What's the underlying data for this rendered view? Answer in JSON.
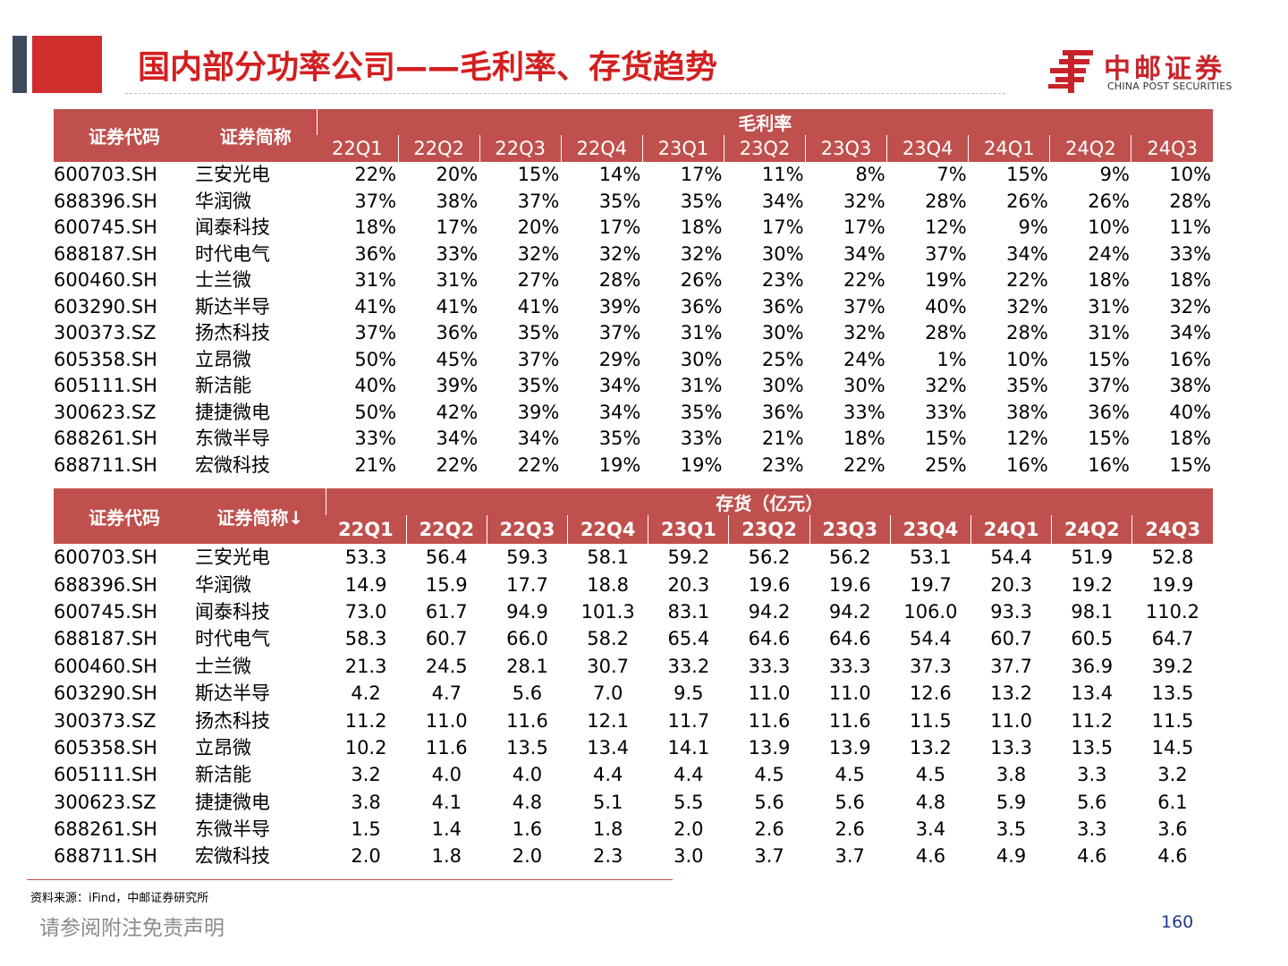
{
  "title": "国内部分功率公司——毛利率、存货趋势",
  "logo": {
    "cn": "中邮证券",
    "en": "CHINA POST SECURITIES"
  },
  "gross_margin_table": {
    "header_code": "证券代码",
    "header_name": "证券简称",
    "header_group": "毛利率",
    "quarters": [
      "22Q1",
      "22Q2",
      "22Q3",
      "22Q4",
      "23Q1",
      "23Q2",
      "23Q3",
      "23Q4",
      "24Q1",
      "24Q2",
      "24Q3"
    ],
    "rows": [
      {
        "code": "600703.SH",
        "name": "三安光电",
        "values": [
          "22%",
          "20%",
          "15%",
          "14%",
          "17%",
          "11%",
          "8%",
          "7%",
          "15%",
          "9%",
          "10%"
        ]
      },
      {
        "code": "688396.SH",
        "name": "华润微",
        "values": [
          "37%",
          "38%",
          "37%",
          "35%",
          "35%",
          "34%",
          "32%",
          "28%",
          "26%",
          "26%",
          "28%"
        ]
      },
      {
        "code": "600745.SH",
        "name": "闻泰科技",
        "values": [
          "18%",
          "17%",
          "20%",
          "17%",
          "18%",
          "17%",
          "17%",
          "12%",
          "9%",
          "10%",
          "11%"
        ]
      },
      {
        "code": "688187.SH",
        "name": "时代电气",
        "values": [
          "36%",
          "33%",
          "32%",
          "32%",
          "32%",
          "30%",
          "34%",
          "37%",
          "34%",
          "24%",
          "33%"
        ]
      },
      {
        "code": "600460.SH",
        "name": "士兰微",
        "values": [
          "31%",
          "31%",
          "27%",
          "28%",
          "26%",
          "23%",
          "22%",
          "19%",
          "22%",
          "18%",
          "18%"
        ]
      },
      {
        "code": "603290.SH",
        "name": "斯达半导",
        "values": [
          "41%",
          "41%",
          "41%",
          "39%",
          "36%",
          "36%",
          "37%",
          "40%",
          "32%",
          "31%",
          "32%"
        ]
      },
      {
        "code": "300373.SZ",
        "name": "扬杰科技",
        "values": [
          "37%",
          "36%",
          "35%",
          "37%",
          "31%",
          "30%",
          "32%",
          "28%",
          "28%",
          "31%",
          "34%"
        ]
      },
      {
        "code": "605358.SH",
        "name": "立昂微",
        "values": [
          "50%",
          "45%",
          "37%",
          "29%",
          "30%",
          "25%",
          "24%",
          "1%",
          "10%",
          "15%",
          "16%"
        ]
      },
      {
        "code": "605111.SH",
        "name": "新洁能",
        "values": [
          "40%",
          "39%",
          "35%",
          "34%",
          "31%",
          "30%",
          "30%",
          "32%",
          "35%",
          "37%",
          "38%"
        ]
      },
      {
        "code": "300623.SZ",
        "name": "捷捷微电",
        "values": [
          "50%",
          "42%",
          "39%",
          "34%",
          "35%",
          "36%",
          "33%",
          "33%",
          "38%",
          "36%",
          "40%"
        ]
      },
      {
        "code": "688261.SH",
        "name": "东微半导",
        "values": [
          "33%",
          "34%",
          "34%",
          "35%",
          "33%",
          "21%",
          "18%",
          "15%",
          "12%",
          "15%",
          "18%"
        ]
      },
      {
        "code": "688711.SH",
        "name": "宏微科技",
        "values": [
          "21%",
          "22%",
          "22%",
          "19%",
          "19%",
          "23%",
          "22%",
          "25%",
          "16%",
          "16%",
          "15%"
        ]
      }
    ]
  },
  "inventory_table": {
    "header_code": "证券代码",
    "header_name": "证券简称↓",
    "header_group": "存货（亿元）",
    "quarters": [
      "22Q1",
      "22Q2",
      "22Q3",
      "22Q4",
      "23Q1",
      "23Q2",
      "23Q3",
      "23Q4",
      "24Q1",
      "24Q2",
      "24Q3"
    ],
    "rows": [
      {
        "code": "600703.SH",
        "name": "三安光电",
        "values": [
          "53.3",
          "56.4",
          "59.3",
          "58.1",
          "59.2",
          "56.2",
          "56.2",
          "53.1",
          "54.4",
          "51.9",
          "52.8"
        ]
      },
      {
        "code": "688396.SH",
        "name": "华润微",
        "values": [
          "14.9",
          "15.9",
          "17.7",
          "18.8",
          "20.3",
          "19.6",
          "19.6",
          "19.7",
          "20.3",
          "19.2",
          "19.9"
        ]
      },
      {
        "code": "600745.SH",
        "name": "闻泰科技",
        "values": [
          "73.0",
          "61.7",
          "94.9",
          "101.3",
          "83.1",
          "94.2",
          "94.2",
          "106.0",
          "93.3",
          "98.1",
          "110.2"
        ]
      },
      {
        "code": "688187.SH",
        "name": "时代电气",
        "values": [
          "58.3",
          "60.7",
          "66.0",
          "58.2",
          "65.4",
          "64.6",
          "64.6",
          "54.4",
          "60.7",
          "60.5",
          "64.7"
        ]
      },
      {
        "code": "600460.SH",
        "name": "士兰微",
        "values": [
          "21.3",
          "24.5",
          "28.1",
          "30.7",
          "33.2",
          "33.3",
          "33.3",
          "37.3",
          "37.7",
          "36.9",
          "39.2"
        ]
      },
      {
        "code": "603290.SH",
        "name": "斯达半导",
        "values": [
          "4.2",
          "4.7",
          "5.6",
          "7.0",
          "9.5",
          "11.0",
          "11.0",
          "12.6",
          "13.2",
          "13.4",
          "13.5"
        ]
      },
      {
        "code": "300373.SZ",
        "name": "扬杰科技",
        "values": [
          "11.2",
          "11.0",
          "11.6",
          "12.1",
          "11.7",
          "11.6",
          "11.6",
          "11.5",
          "11.0",
          "11.2",
          "11.5"
        ]
      },
      {
        "code": "605358.SH",
        "name": "立昂微",
        "values": [
          "10.2",
          "11.6",
          "13.5",
          "13.4",
          "14.1",
          "13.9",
          "13.9",
          "13.2",
          "13.3",
          "13.5",
          "14.5"
        ]
      },
      {
        "code": "605111.SH",
        "name": "新洁能",
        "values": [
          "3.2",
          "4.0",
          "4.0",
          "4.4",
          "4.4",
          "4.5",
          "4.5",
          "4.5",
          "3.8",
          "3.3",
          "3.2"
        ]
      },
      {
        "code": "300623.SZ",
        "name": "捷捷微电",
        "values": [
          "3.8",
          "4.1",
          "4.8",
          "5.1",
          "5.5",
          "5.6",
          "5.6",
          "4.8",
          "5.9",
          "5.6",
          "6.1"
        ]
      },
      {
        "code": "688261.SH",
        "name": "东微半导",
        "values": [
          "1.5",
          "1.4",
          "1.6",
          "1.8",
          "2.0",
          "2.6",
          "2.6",
          "3.4",
          "3.5",
          "3.3",
          "3.6"
        ]
      },
      {
        "code": "688711.SH",
        "name": "宏微科技",
        "values": [
          "2.0",
          "1.8",
          "2.0",
          "2.3",
          "3.0",
          "3.7",
          "3.7",
          "4.6",
          "4.9",
          "4.6",
          "4.6"
        ]
      }
    ]
  },
  "source": "资料来源：iFind，中邮证券研究所",
  "disclaimer": "请参阅附注免责声明",
  "page_number": "160",
  "colors": {
    "accent_red": "#d31f1f",
    "header_fill": "#c0504d",
    "dark_block": "#3d4b5c",
    "page_number": "#1f3c88"
  }
}
